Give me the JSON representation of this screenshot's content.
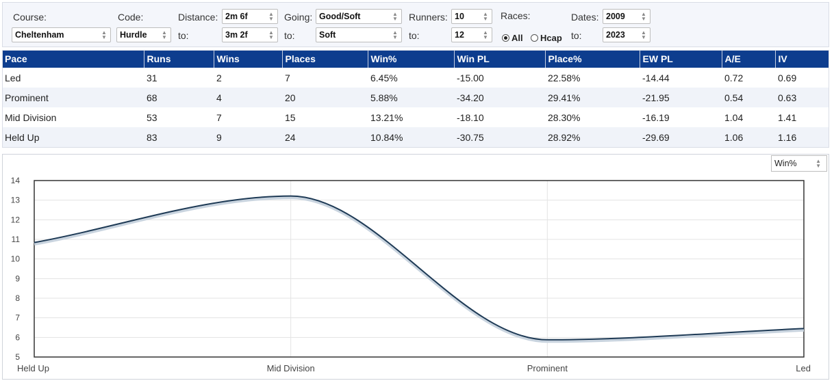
{
  "filters": {
    "course_label": "Course:",
    "course_value": "Cheltenham",
    "code_label": "Code:",
    "code_value": "Hurdle",
    "distance_label": "Distance:",
    "distance_from": "2m 6f",
    "distance_to_label": "to:",
    "distance_to": "3m 2f",
    "going_label": "Going:",
    "going_from": "Good/Soft",
    "going_to_label": "to:",
    "going_to": "Soft",
    "runners_label": "Runners:",
    "runners_from": "10",
    "runners_to_label": "to:",
    "runners_to": "12",
    "races_label": "Races:",
    "races_all": "All",
    "races_hcap": "Hcap",
    "races_selected": "All",
    "dates_label": "Dates:",
    "dates_from": "2009",
    "dates_to_label": "to:",
    "dates_to": "2023"
  },
  "table": {
    "headers": [
      "Pace",
      "Runs",
      "Wins",
      "Places",
      "Win%",
      "Win PL",
      "Place%",
      "EW PL",
      "A/E",
      "IV"
    ],
    "rows": [
      [
        "Led",
        "31",
        "2",
        "7",
        "6.45%",
        "-15.00",
        "22.58%",
        "-14.44",
        "0.72",
        "0.69"
      ],
      [
        "Prominent",
        "68",
        "4",
        "20",
        "5.88%",
        "-34.20",
        "29.41%",
        "-21.95",
        "0.54",
        "0.63"
      ],
      [
        "Mid Division",
        "53",
        "7",
        "15",
        "13.21%",
        "-18.10",
        "28.30%",
        "-16.19",
        "1.04",
        "1.41"
      ],
      [
        "Held Up",
        "83",
        "9",
        "24",
        "10.84%",
        "-30.75",
        "28.92%",
        "-29.69",
        "1.06",
        "1.16"
      ]
    ]
  },
  "metric_select": "Win%",
  "colors": {
    "header_bg": "#0d3d8e",
    "negative": "#d21f1f",
    "line": "#1e3a55"
  },
  "chart_data": {
    "type": "line",
    "categories": [
      "Held Up",
      "Mid Division",
      "Prominent",
      "Led"
    ],
    "series": [
      {
        "values": [
          10.84,
          13.21,
          5.88,
          6.45
        ]
      }
    ],
    "ylim": [
      5,
      14
    ],
    "yticks": [
      5,
      6,
      7,
      8,
      9,
      10,
      11,
      12,
      13,
      14
    ],
    "grid": true
  }
}
